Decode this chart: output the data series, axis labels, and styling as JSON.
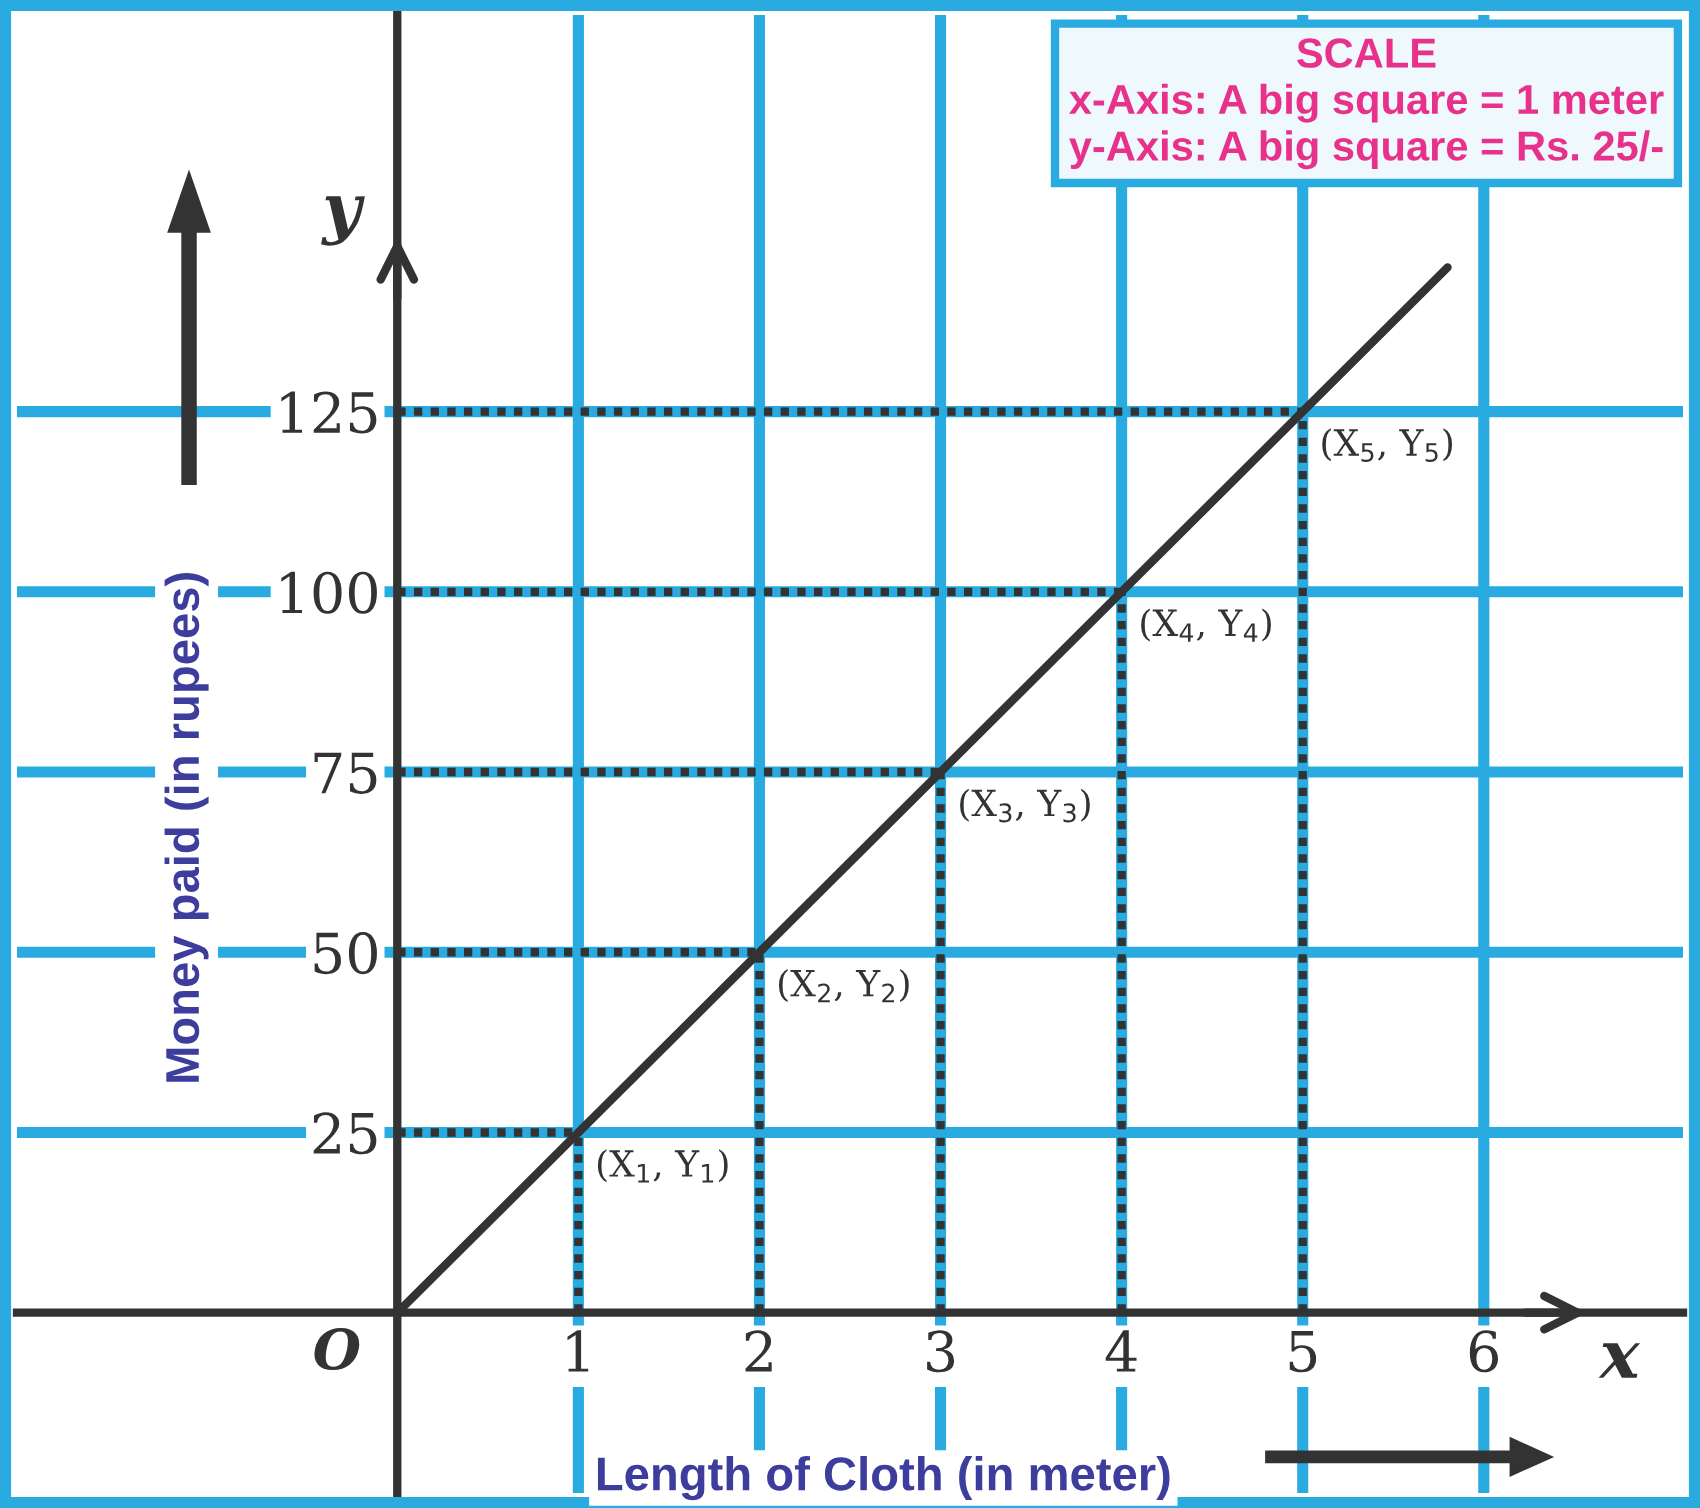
{
  "chart_data": {
    "type": "line",
    "xlabel": "Length of Cloth (in meter)",
    "ylabel": "Money paid (in rupees)",
    "x": [
      0,
      1,
      2,
      3,
      4,
      5,
      5.8
    ],
    "series": [
      {
        "color": "#333333",
        "values": [
          0,
          25,
          50,
          75,
          100,
          125,
          145
        ]
      }
    ],
    "xlim": [
      -2.1,
      7.1
    ],
    "ylim": [
      -25,
      180
    ],
    "xticks": [
      1,
      2,
      3,
      4,
      5,
      6
    ],
    "yticks": [
      25,
      50,
      75,
      100,
      125
    ],
    "grid": true,
    "marker": "none",
    "line_style": "solid",
    "annotations": [
      {
        "text": "(X$_{1}$, Y$_{1}$)",
        "x": 1,
        "y": 25
      },
      {
        "text": "(X$_{2}$, Y$_{2}$)",
        "x": 2,
        "y": 50
      },
      {
        "text": "(X$_{3}$, Y$_{3}$)",
        "x": 3,
        "y": 75
      },
      {
        "text": "(X$_{4}$, Y$_{4}$)",
        "x": 4,
        "y": 100
      },
      {
        "text": "(X$_{5}$, Y$_{5}$)",
        "x": 5,
        "y": 125
      },
      "O",
      "x",
      "y",
      "SCALE",
      "x-Axis: A big square = 1 meter",
      "y-Axis: A big square = Rs. 25/-"
    ]
  }
}
